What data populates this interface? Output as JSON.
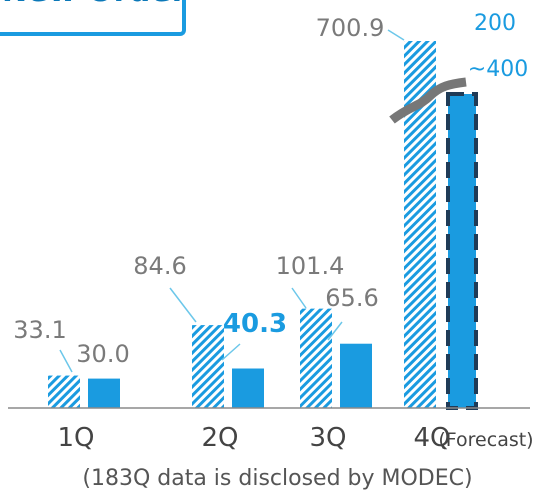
{
  "chart_data": {
    "type": "bar",
    "title": "New Order",
    "categories": [
      "1Q",
      "2Q",
      "3Q",
      "4Q"
    ],
    "forecast_note": "(Forecast)",
    "footnote": "(183Q data is disclosed by MODEC)",
    "series": [
      {
        "values": [
          33.1,
          84.6,
          101.4,
          700.9
        ],
        "pattern": "hatched",
        "label_color": "#7a7a7a"
      },
      {
        "values": [
          30.0,
          40.3,
          65.6,
          null
        ],
        "pattern": "solid",
        "label_color": "#7a7a7a"
      }
    ],
    "forecast": {
      "category": "4Q",
      "label_top": "200",
      "label_bottom": "~400",
      "axis_break": true
    },
    "highlight": {
      "category": "2Q",
      "value": 40.3,
      "color": "#1a9be0"
    },
    "colors": {
      "bar": "#1a9be0",
      "dark": "#1f3b57",
      "leader": "#6cc7ea",
      "axis_break": "#777777"
    },
    "axis": {
      "grid": false
    }
  }
}
